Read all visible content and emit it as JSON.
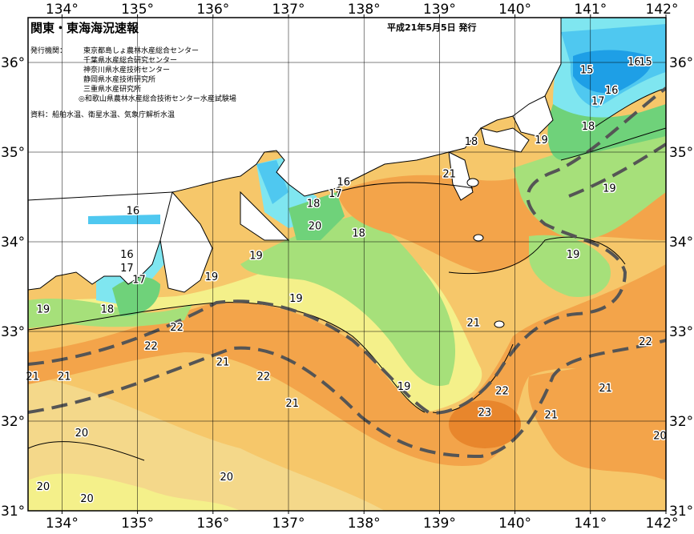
{
  "title": "関東・東海海況速報",
  "date": "平成21年5月5日 発行",
  "issuers_label": "発行機関：",
  "issuers": [
    "東京都島しょ農林水産総合センター",
    "千葉県水産総合研究センター",
    "神奈川県水産技術センター",
    "静岡県水産技術研究所",
    "三重県水産研究所",
    "◎和歌山県農林水産総合技術センター水産試験場"
  ],
  "sources": "資料：船舶水温、衛星水温、気象庁解析水温",
  "lon_ticks": [
    "134°",
    "135°",
    "136°",
    "137°",
    "138°",
    "139°",
    "140°",
    "141°",
    "142°"
  ],
  "lat_ticks": [
    "36°",
    "35°",
    "34°",
    "33°",
    "32°",
    "31°"
  ],
  "temp_labels": [
    {
      "text": "15",
      "lon": 140.95,
      "lat": 35.88
    },
    {
      "text": "16",
      "lon": 141.58,
      "lat": 35.97
    },
    {
      "text": "15",
      "lon": 141.73,
      "lat": 35.97
    },
    {
      "text": "16",
      "lon": 141.28,
      "lat": 35.65
    },
    {
      "text": "17",
      "lon": 141.1,
      "lat": 35.53
    },
    {
      "text": "18",
      "lon": 140.97,
      "lat": 35.25
    },
    {
      "text": "19",
      "lon": 140.35,
      "lat": 35.1
    },
    {
      "text": "18",
      "lon": 139.42,
      "lat": 35.08
    },
    {
      "text": "21",
      "lon": 139.13,
      "lat": 34.72
    },
    {
      "text": "19",
      "lon": 141.25,
      "lat": 34.56
    },
    {
      "text": "19",
      "lon": 140.77,
      "lat": 33.82
    },
    {
      "text": "16",
      "lon": 137.73,
      "lat": 34.63
    },
    {
      "text": "17",
      "lon": 137.62,
      "lat": 34.5
    },
    {
      "text": "18",
      "lon": 137.33,
      "lat": 34.39
    },
    {
      "text": "20",
      "lon": 137.35,
      "lat": 34.14
    },
    {
      "text": "18",
      "lon": 137.93,
      "lat": 34.06
    },
    {
      "text": "16",
      "lon": 134.94,
      "lat": 34.31
    },
    {
      "text": "16",
      "lon": 134.86,
      "lat": 33.82
    },
    {
      "text": "17",
      "lon": 134.86,
      "lat": 33.67
    },
    {
      "text": "17",
      "lon": 135.02,
      "lat": 33.54
    },
    {
      "text": "19",
      "lon": 136.57,
      "lat": 33.81
    },
    {
      "text": "19",
      "lon": 135.98,
      "lat": 33.57
    },
    {
      "text": "19",
      "lon": 137.1,
      "lat": 33.33
    },
    {
      "text": "19",
      "lon": 133.75,
      "lat": 33.21
    },
    {
      "text": "18",
      "lon": 134.6,
      "lat": 33.21
    },
    {
      "text": "22",
      "lon": 135.52,
      "lat": 33.01
    },
    {
      "text": "22",
      "lon": 135.18,
      "lat": 32.8
    },
    {
      "text": "21",
      "lon": 136.13,
      "lat": 32.62
    },
    {
      "text": "22",
      "lon": 136.67,
      "lat": 32.46
    },
    {
      "text": "21",
      "lon": 133.61,
      "lat": 32.46
    },
    {
      "text": "21",
      "lon": 134.03,
      "lat": 32.46
    },
    {
      "text": "21",
      "lon": 137.05,
      "lat": 32.16
    },
    {
      "text": "19",
      "lon": 138.53,
      "lat": 32.35
    },
    {
      "text": "21",
      "lon": 139.45,
      "lat": 33.06
    },
    {
      "text": "22",
      "lon": 139.83,
      "lat": 32.3
    },
    {
      "text": "23",
      "lon": 139.6,
      "lat": 32.06
    },
    {
      "text": "21",
      "lon": 140.48,
      "lat": 32.03
    },
    {
      "text": "21",
      "lon": 141.2,
      "lat": 32.33
    },
    {
      "text": "22",
      "lon": 141.73,
      "lat": 32.85
    },
    {
      "text": "20",
      "lon": 134.26,
      "lat": 31.83
    },
    {
      "text": "20",
      "lon": 141.92,
      "lat": 31.8
    },
    {
      "text": "20",
      "lon": 133.75,
      "lat": 31.23
    },
    {
      "text": "20",
      "lon": 136.18,
      "lat": 31.34
    },
    {
      "text": "20",
      "lon": 134.33,
      "lat": 31.1
    }
  ],
  "colors": {
    "t15": "#1e9fe6",
    "t16": "#4fc8f0",
    "t17": "#7fe6f0",
    "t18": "#6fd27a",
    "t19": "#a6e07a",
    "t20": "#f4f08a",
    "t21": "#f6c76a",
    "t22": "#f3a44a",
    "t23": "#e8862c",
    "land": "#ffffff",
    "kuroshio": "#555555"
  }
}
